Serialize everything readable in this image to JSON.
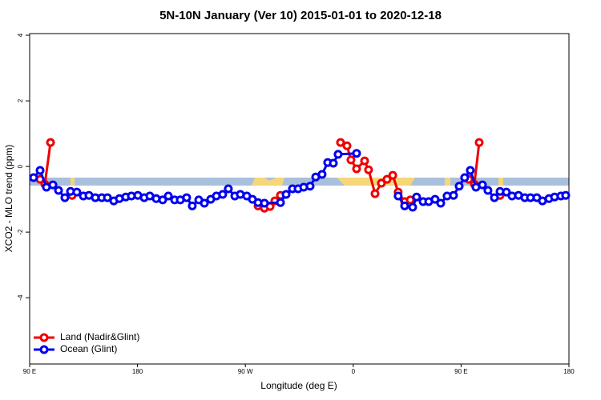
{
  "chart_data": {
    "type": "line",
    "title": "5N-10N January (Ver 10)   2015-01-01 to 2020-12-18",
    "x_label": "Longitude (deg E)",
    "y_label": "XCO2 - MLO trend (ppm)",
    "xlim": [
      90,
      540
    ],
    "ylim": [
      -6.02,
      4.05
    ],
    "xticks": [
      {
        "value": 90,
        "label": "90 E"
      },
      180,
      {
        "value": 270,
        "label": "90 W"
      },
      {
        "value": 360,
        "label": "0"
      },
      {
        "value": 450,
        "label": "90 E"
      },
      {
        "value": 540,
        "label": "180"
      }
    ],
    "yticks": [
      -4,
      -2,
      0,
      2,
      4
    ],
    "series": [
      {
        "name": "Land (Nadir&Glint)",
        "color": "#ee0000",
        "x": [
          98.7,
          102.7,
          107.4,
          null,
          125.4,
          null,
          280.6,
          285.9,
          290.6,
          294.6,
          299.3,
          null,
          349.4,
          354.8,
          358.1,
          362.8,
          369.5,
          372.8,
          378.2,
          383.5,
          388.2,
          393.0,
          397.5,
          402.9,
          407.6,
          null,
          456.4,
          461.1,
          465.1,
          null,
          482.5
        ],
        "values": [
          -0.39,
          -0.54,
          0.73,
          null,
          -0.88,
          null,
          -1.2,
          -1.27,
          -1.22,
          -1.05,
          -0.88,
          null,
          0.73,
          0.63,
          0.2,
          -0.07,
          0.17,
          -0.1,
          -0.83,
          -0.51,
          -0.39,
          -0.27,
          -0.78,
          -1.07,
          -1.02,
          null,
          -0.39,
          -0.54,
          0.73,
          null,
          -0.88
        ]
      },
      {
        "name": "Ocean (Glint)",
        "color": "#0000ee",
        "x": [
          93.3,
          98.7,
          104.0,
          109.4,
          114.1,
          119.4,
          124.1,
          129.4,
          134.8,
          139.5,
          144.8,
          150.2,
          154.9,
          160.2,
          164.9,
          170.2,
          174.9,
          180.3,
          185.6,
          190.3,
          195.6,
          201.0,
          205.7,
          211.0,
          215.7,
          221.0,
          225.7,
          231.1,
          235.8,
          241.1,
          245.8,
          251.1,
          255.8,
          261.2,
          265.8,
          271.2,
          275.9,
          280.6,
          285.9,
          299.3,
          304.0,
          309.3,
          314.0,
          318.7,
          324.0,
          328.7,
          334.0,
          338.7,
          343.4,
          347.4,
          362.8,
          null,
          397.5,
          402.9,
          409.6,
          412.9,
          418.3,
          423.0,
          428.3,
          433.0,
          438.3,
          443.7,
          448.4,
          453.0,
          457.7,
          462.4,
          467.8,
          472.4,
          477.8,
          482.5,
          487.8,
          492.5,
          497.9,
          503.2,
          507.9,
          513.2,
          517.9,
          523.3,
          528.0,
          533.3,
          537.3
        ],
        "values": [
          -0.34,
          -0.12,
          -0.63,
          -0.56,
          -0.73,
          -0.95,
          -0.76,
          -0.78,
          -0.9,
          -0.88,
          -0.95,
          -0.95,
          -0.95,
          -1.05,
          -0.98,
          -0.93,
          -0.9,
          -0.88,
          -0.95,
          -0.9,
          -0.98,
          -1.02,
          -0.9,
          -1.02,
          -1.02,
          -0.95,
          -1.2,
          -1.02,
          -1.12,
          -1.0,
          -0.9,
          -0.85,
          -0.68,
          -0.9,
          -0.85,
          -0.9,
          -1.0,
          -1.1,
          -1.12,
          -1.1,
          -0.85,
          -0.68,
          -0.68,
          -0.63,
          -0.6,
          -0.32,
          -0.24,
          0.12,
          0.1,
          0.37,
          0.4,
          null,
          -0.9,
          -1.2,
          -1.24,
          -0.93,
          -1.07,
          -1.07,
          -1.0,
          -1.12,
          -0.9,
          -0.88,
          -0.6,
          -0.34,
          -0.12,
          -0.63,
          -0.56,
          -0.73,
          -0.95,
          -0.76,
          -0.78,
          -0.9,
          -0.88,
          -0.95,
          -0.95,
          -0.95,
          -1.05,
          -0.98,
          -0.93,
          -0.9,
          -0.88
        ]
      }
    ],
    "legend": "bottom-left"
  }
}
